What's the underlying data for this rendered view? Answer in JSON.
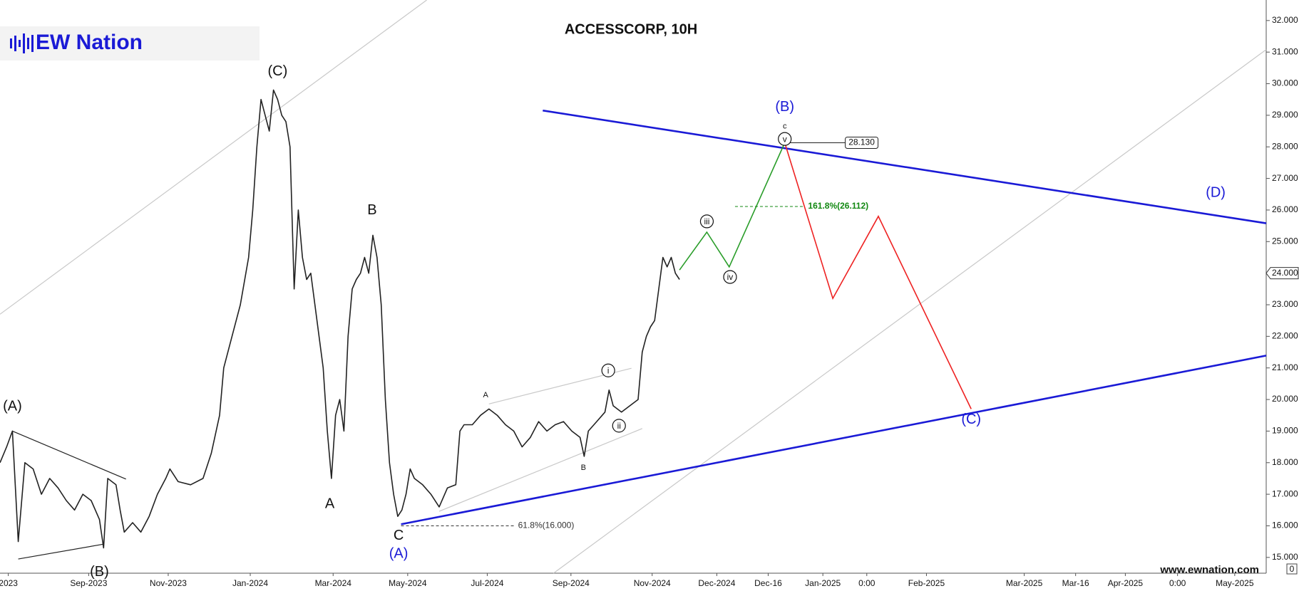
{
  "chart_data": {
    "type": "line",
    "title": "ACCESSCORP, 10H",
    "logo": "EW Nation",
    "website": "www.ewnation.com",
    "axis_corner_label": "0",
    "color": "#222222",
    "x": [
      0,
      8,
      15,
      22,
      30,
      40,
      50,
      60,
      70,
      80,
      90,
      100,
      110,
      120,
      125,
      130,
      140,
      145,
      150,
      160,
      170,
      180,
      190,
      200,
      205,
      215,
      230,
      245,
      255,
      265,
      270,
      280,
      290,
      300,
      305,
      310,
      315,
      320,
      325,
      330,
      335,
      340,
      345,
      350,
      355,
      360,
      365,
      370,
      375,
      380,
      385,
      390,
      395,
      400,
      405,
      410,
      415,
      420,
      425,
      430,
      435,
      440,
      445,
      450,
      455,
      460,
      465,
      470,
      475,
      480,
      485,
      490,
      495,
      500,
      510,
      520,
      530,
      540,
      550,
      555,
      560,
      570,
      580,
      590,
      600,
      610,
      620,
      630,
      640,
      650,
      660,
      670,
      680,
      690,
      700,
      705,
      710,
      720,
      730,
      735,
      740,
      750,
      760,
      770,
      775,
      780,
      785,
      790,
      795,
      800,
      805,
      810,
      815,
      820
    ],
    "values": [
      18.0,
      18.5,
      19.0,
      15.5,
      18.0,
      17.8,
      17.0,
      17.5,
      17.2,
      16.8,
      16.5,
      17.0,
      16.8,
      16.2,
      15.3,
      17.5,
      17.3,
      16.5,
      15.8,
      16.1,
      15.8,
      16.3,
      17.0,
      17.5,
      17.8,
      17.4,
      17.3,
      17.5,
      18.3,
      19.5,
      21.0,
      22.0,
      23.0,
      24.5,
      26.0,
      28.0,
      29.5,
      29.0,
      28.5,
      29.8,
      29.5,
      29.0,
      28.8,
      28.0,
      23.5,
      26.0,
      24.5,
      23.8,
      24.0,
      23.0,
      22.0,
      21.0,
      19.0,
      17.5,
      19.5,
      20.0,
      19.0,
      22.0,
      23.5,
      23.8,
      24.0,
      24.5,
      24.0,
      25.2,
      24.5,
      23.0,
      20.0,
      18.0,
      17.0,
      16.3,
      16.5,
      17.0,
      17.8,
      17.5,
      17.3,
      17.0,
      16.6,
      17.2,
      17.3,
      19.0,
      19.2,
      19.2,
      19.5,
      19.7,
      19.5,
      19.2,
      19.0,
      18.5,
      18.8,
      19.3,
      19.0,
      19.2,
      19.3,
      19.0,
      18.8,
      18.2,
      19.0,
      19.3,
      19.6,
      20.3,
      19.8,
      19.6,
      19.8,
      20.0,
      21.5,
      22.0,
      22.3,
      22.5,
      23.5,
      24.5,
      24.2,
      24.5,
      24.0,
      23.8
    ],
    "xlim": [
      0,
      1528
    ],
    "ylim": [
      14.5,
      32.65
    ],
    "xticks": [
      {
        "value": 10,
        "label": "2023"
      },
      {
        "value": 107,
        "label": "Sep-2023"
      },
      {
        "value": 203,
        "label": "Nov-2023"
      },
      {
        "value": 302,
        "label": "Jan-2024"
      },
      {
        "value": 402,
        "label": "Mar-2024"
      },
      {
        "value": 492,
        "label": "May-2024"
      },
      {
        "value": 588,
        "label": "Jul-2024"
      },
      {
        "value": 689,
        "label": "Sep-2024"
      },
      {
        "value": 787,
        "label": "Nov-2024"
      },
      {
        "value": 865,
        "label": "Dec-2024"
      },
      {
        "value": 927,
        "label": "Dec-16"
      },
      {
        "value": 993,
        "label": "Jan-2025"
      },
      {
        "value": 1046,
        "label": "0:00"
      },
      {
        "value": 1118,
        "label": "Feb-2025"
      },
      {
        "value": 1236,
        "label": "Mar-2025"
      },
      {
        "value": 1298,
        "label": "Mar-16"
      },
      {
        "value": 1358,
        "label": "Apr-2025"
      },
      {
        "value": 1421,
        "label": "0:00"
      },
      {
        "value": 1490,
        "label": "May-2025"
      }
    ],
    "yticks": [
      {
        "value": 15,
        "label": "15.000"
      },
      {
        "value": 16,
        "label": "16.000"
      },
      {
        "value": 17,
        "label": "17.000"
      },
      {
        "value": 18,
        "label": "18.000"
      },
      {
        "value": 19,
        "label": "19.000"
      },
      {
        "value": 20,
        "label": "20.000"
      },
      {
        "value": 21,
        "label": "21.000"
      },
      {
        "value": 22,
        "label": "22.000"
      },
      {
        "value": 23,
        "label": "23.000"
      },
      {
        "value": 24,
        "label": "24.000"
      },
      {
        "value": 25,
        "label": "25.000"
      },
      {
        "value": 26,
        "label": "26.000"
      },
      {
        "value": 27,
        "label": "27.000"
      },
      {
        "value": 28,
        "label": "28.000"
      },
      {
        "value": 29,
        "label": "29.000"
      },
      {
        "value": 30,
        "label": "30.000"
      },
      {
        "value": 31,
        "label": "31.000"
      },
      {
        "value": 32,
        "label": "32.000"
      }
    ],
    "current_price": {
      "value": 24,
      "label": "24.000"
    },
    "trendlines": [
      {
        "x": [
          655,
          1528
        ],
        "y": [
          29.15,
          25.58
        ],
        "color": "#1a1ad6"
      },
      {
        "x": [
          484,
          1528
        ],
        "y": [
          16.05,
          21.39
        ],
        "color": "#1a1ad6"
      }
    ],
    "guidelines": [
      {
        "x": [
          0,
          515
        ],
        "y": [
          22.7,
          32.65
        ],
        "color": "#c8c8c8"
      },
      {
        "x": [
          668,
          1528
        ],
        "y": [
          14.5,
          31.08
        ],
        "color": "#c8c8c8"
      },
      {
        "x": [
          590,
          762
        ],
        "y": [
          19.86,
          20.99
        ],
        "color": "#c8c8c8"
      },
      {
        "x": [
          530,
          775
        ],
        "y": [
          16.46,
          19.08
        ],
        "color": "#c8c8c8"
      },
      {
        "x": [
          15,
          152
        ],
        "y": [
          19.0,
          17.48
        ],
        "color": "#222222"
      },
      {
        "x": [
          22,
          125
        ],
        "y": [
          14.95,
          15.42
        ],
        "color": "#222222"
      }
    ],
    "projections": [
      {
        "x": [
          820,
          853,
          880,
          947
        ],
        "y": [
          24.1,
          25.3,
          24.2,
          28.13
        ],
        "color": "#2a9d2a"
      },
      {
        "x": [
          947,
          1005,
          1060,
          1172
        ],
        "y": [
          28.13,
          23.2,
          25.8,
          19.7
        ],
        "color": "#ee2222"
      }
    ],
    "levels": [
      {
        "label": "61.8%(16.000)",
        "value": 16,
        "x": [
          484,
          620
        ],
        "color": "#333333"
      },
      {
        "label": "161.8%(26.112)",
        "value": 26.112,
        "x": [
          887,
          970
        ],
        "color": "#118811"
      }
    ],
    "target": {
      "label": "28.130",
      "value": 28.13,
      "x": [
        947,
        1020
      ]
    },
    "annotations": [
      {
        "text": "(A)",
        "x": 15,
        "y": 19.77,
        "color": "#111111"
      },
      {
        "text": "(B)",
        "x": 120,
        "y": 14.53,
        "color": "#111111"
      },
      {
        "text": "(C)",
        "x": 335,
        "y": 30.38,
        "color": "#111111"
      },
      {
        "text": "B",
        "x": 449,
        "y": 25.98,
        "color": "#111111"
      },
      {
        "text": "A",
        "x": 398,
        "y": 16.68,
        "color": "#111111"
      },
      {
        "text": "C",
        "x": 481,
        "y": 15.68,
        "color": "#111111"
      },
      {
        "text": "(A)",
        "x": 481,
        "y": 15.1,
        "color": "#1a1ad6"
      },
      {
        "text": "A",
        "x": 586,
        "y": 20.14,
        "color": "#111111",
        "size": "small"
      },
      {
        "text": "B",
        "x": 704,
        "y": 17.83,
        "color": "#111111",
        "size": "small"
      },
      {
        "text": "i",
        "x": 734,
        "y": 20.92,
        "color": "#111111",
        "size": "circle"
      },
      {
        "text": "ii",
        "x": 747,
        "y": 19.17,
        "color": "#111111",
        "size": "circle"
      },
      {
        "text": "iii",
        "x": 853,
        "y": 25.64,
        "color": "#111111",
        "size": "circle"
      },
      {
        "text": "iv",
        "x": 881,
        "y": 23.88,
        "color": "#111111",
        "size": "circle"
      },
      {
        "text": "v",
        "x": 947,
        "y": 28.25,
        "color": "#111111",
        "size": "circle"
      },
      {
        "text": "c",
        "x": 947,
        "y": 28.65,
        "color": "#111111",
        "size": "small"
      },
      {
        "text": "(B)",
        "x": 947,
        "y": 29.25,
        "color": "#1a1ad6"
      },
      {
        "text": "(D)",
        "x": 1467,
        "y": 26.53,
        "color": "#1a1ad6"
      },
      {
        "text": "(C)",
        "x": 1172,
        "y": 19.35,
        "color": "#1a1ad6"
      }
    ]
  }
}
